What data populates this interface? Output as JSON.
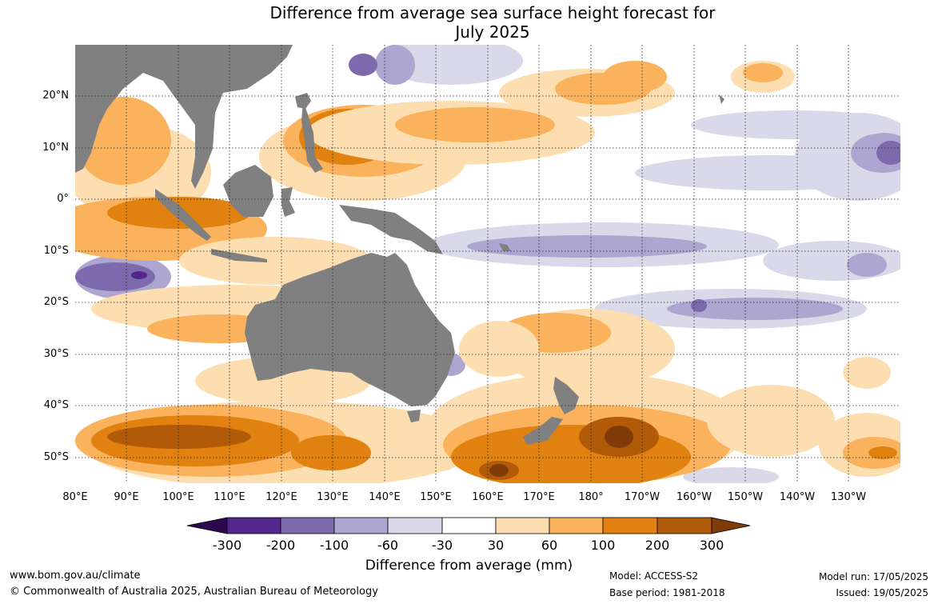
{
  "title_line1": "Difference from average sea surface height forecast for",
  "title_line2": "July 2025",
  "map": {
    "lat_ticks": [
      "20°N",
      "10°N",
      "0°",
      "10°S",
      "20°S",
      "30°S",
      "40°S",
      "50°S"
    ],
    "lon_ticks": [
      "80°E",
      "90°E",
      "100°E",
      "110°E",
      "120°E",
      "130°E",
      "140°E",
      "150°E",
      "160°E",
      "170°E",
      "180°",
      "170°W",
      "160°W",
      "150°W",
      "140°W",
      "130°W"
    ],
    "land_color": "#808080",
    "gridlines": "dotted"
  },
  "colorbar": {
    "labels": [
      "-300",
      "-200",
      "-100",
      "-60",
      "-30",
      "30",
      "60",
      "100",
      "200",
      "300"
    ],
    "colors": [
      "#2d0a4e",
      "#54278f",
      "#7c6aad",
      "#aca6d1",
      "#d9d9ea",
      "#ffffff",
      "#fddeb0",
      "#fab25c",
      "#e1810f",
      "#b15a08",
      "#7f3b08"
    ],
    "title": "Difference from average (mm)"
  },
  "footer": {
    "url": "www.bom.gov.au/climate",
    "copyright": "© Commonwealth of Australia 2025, Australian Bureau of Meteorology",
    "model": "Model: ACCESS-S2",
    "base_period": "Base period: 1981-2018",
    "model_run": "Model run: 17/05/2025",
    "issued": "Issued: 19/05/2025"
  }
}
